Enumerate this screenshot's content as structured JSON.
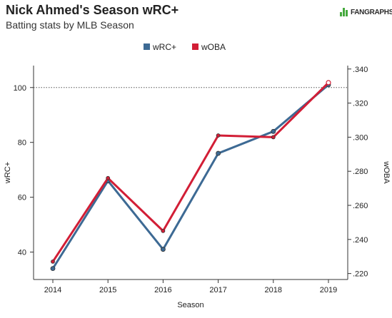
{
  "header": {
    "title": "Nick Ahmed's Season wRC+",
    "subtitle": "Batting stats by MLB Season",
    "logo_text": "FANGRAPHS"
  },
  "colors": {
    "wrc_plus": "#3d6a94",
    "woba": "#d21e36",
    "logo_green": "#45a93d",
    "axis": "#333333",
    "reference_line": "#555555"
  },
  "chart_data": {
    "type": "line",
    "title": "Nick Ahmed's Season wRC+",
    "subtitle": "Batting stats by MLB Season",
    "xlabel": "Season",
    "ylabel_left": "wRC+",
    "ylabel_right": "wOBA",
    "categories": [
      "2014",
      "2015",
      "2016",
      "2017",
      "2018",
      "2019"
    ],
    "series": [
      {
        "name": "wRC+",
        "axis": "left",
        "values": [
          34,
          66,
          41,
          76,
          84,
          101
        ],
        "marker": "filled"
      },
      {
        "name": "wOBA",
        "axis": "right",
        "values": [
          0.227,
          0.276,
          0.245,
          0.301,
          0.3,
          0.332
        ],
        "marker_last": "hollow"
      }
    ],
    "left_axis": {
      "ticks": [
        40,
        60,
        80,
        100
      ],
      "tick_labels": [
        "40",
        "60",
        "80",
        "100"
      ],
      "range": [
        30,
        108
      ]
    },
    "right_axis": {
      "ticks": [
        0.22,
        0.24,
        0.26,
        0.28,
        0.3,
        0.32,
        0.34
      ],
      "tick_labels": [
        ".220",
        ".240",
        ".260",
        ".280",
        ".300",
        ".320",
        ".340"
      ],
      "range": [
        0.2165,
        0.342
      ]
    },
    "reference_line": {
      "axis": "left",
      "value": 100,
      "style": "dotted"
    },
    "legend": {
      "position": "top-center"
    },
    "grid": false
  }
}
